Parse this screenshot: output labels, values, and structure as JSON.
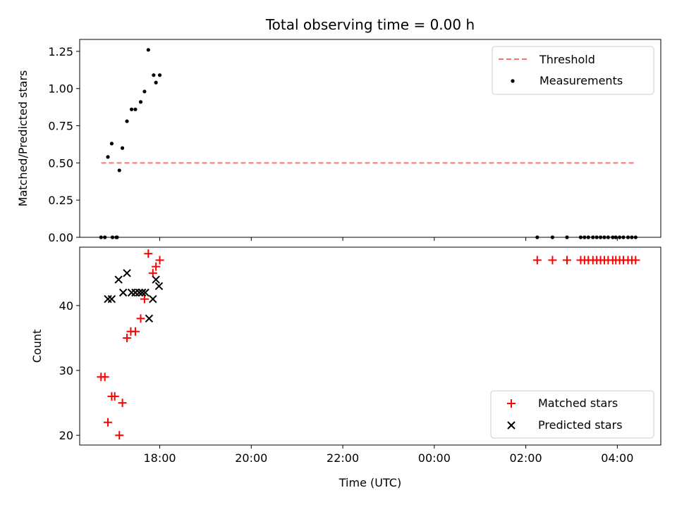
{
  "title": "Total observing time = 0.00 h",
  "chart_data": [
    {
      "panel": "top",
      "type": "scatter",
      "ylabel": "Matched/Predicted stars",
      "ylim": [
        0,
        1.33
      ],
      "yticks": [
        "0.00",
        "0.25",
        "0.50",
        "0.75",
        "1.00",
        "1.25"
      ],
      "xlim_hours": [
        16.25,
        28.95
      ],
      "legend_position": "top-right",
      "threshold": {
        "name": "Threshold",
        "value": 0.5,
        "x_start": 16.72,
        "x_end": 28.38,
        "color": "#ff7070"
      },
      "series": [
        {
          "name": "Measurements",
          "color": "#000000",
          "x": [
            "16:43",
            "16:48",
            "16:52",
            "16:57",
            "17:04",
            "17:07",
            "17:11",
            "17:17",
            "17:23",
            "17:28",
            "17:35",
            "17:40",
            "17:45",
            "17:52",
            "17:55",
            "18:00",
            "16:58",
            "17:03",
            "02:15",
            "02:35",
            "02:54",
            "03:12",
            "03:17",
            "03:22",
            "03:28",
            "03:33",
            "03:38",
            "03:43",
            "03:48",
            "03:54",
            "03:58",
            "04:03",
            "04:08",
            "04:14",
            "04:19",
            "04:24"
          ],
          "y": [
            0.0,
            0.0,
            0.54,
            0.63,
            0.0,
            0.45,
            0.6,
            0.78,
            0.86,
            0.86,
            0.91,
            0.98,
            1.26,
            1.09,
            1.04,
            1.09,
            0.0,
            0.0,
            0.0,
            0.0,
            0.0,
            0.0,
            0.0,
            0.0,
            0.0,
            0.0,
            0.0,
            0.0,
            0.0,
            0.0,
            0.0,
            0.0,
            0.0,
            0.0,
            0.0,
            0.0
          ]
        }
      ]
    },
    {
      "panel": "bottom",
      "type": "scatter",
      "xlabel": "Time (UTC)",
      "ylabel": "Count",
      "ylim": [
        18.5,
        49
      ],
      "yticks": [
        "20",
        "30",
        "40"
      ],
      "xticks": [
        "18:00",
        "20:00",
        "22:00",
        "00:00",
        "02:00",
        "04:00"
      ],
      "xlim_hours": [
        16.25,
        28.95
      ],
      "legend_position": "bottom-right",
      "series": [
        {
          "name": "Matched stars",
          "marker": "plus",
          "color": "#ff0000",
          "x": [
            "16:43",
            "16:48",
            "16:52",
            "16:57",
            "17:01",
            "17:07",
            "17:11",
            "17:17",
            "17:22",
            "17:28",
            "17:35",
            "17:40",
            "17:45",
            "17:51",
            "17:55",
            "18:00",
            "02:15",
            "02:35",
            "02:54",
            "03:12",
            "03:17",
            "03:22",
            "03:28",
            "03:33",
            "03:38",
            "03:43",
            "03:48",
            "03:54",
            "03:58",
            "04:03",
            "04:08",
            "04:14",
            "04:19",
            "04:24"
          ],
          "y": [
            29,
            29,
            22,
            26,
            26,
            20,
            25,
            35,
            36,
            36,
            38,
            41,
            48,
            45,
            46,
            47,
            47,
            47,
            47,
            47,
            47,
            47,
            47,
            47,
            47,
            47,
            47,
            47,
            47,
            47,
            47,
            47,
            47,
            47
          ]
        },
        {
          "name": "Predicted stars",
          "marker": "x",
          "color": "#000000",
          "x": [
            "16:52",
            "16:57",
            "17:06",
            "17:12",
            "17:17",
            "17:23",
            "17:28",
            "17:33",
            "17:37",
            "17:41",
            "17:46",
            "17:51",
            "17:55",
            "17:59"
          ],
          "y": [
            41,
            41,
            44,
            42,
            45,
            42,
            42,
            42,
            42,
            42,
            38,
            41,
            44,
            43
          ]
        }
      ]
    }
  ]
}
